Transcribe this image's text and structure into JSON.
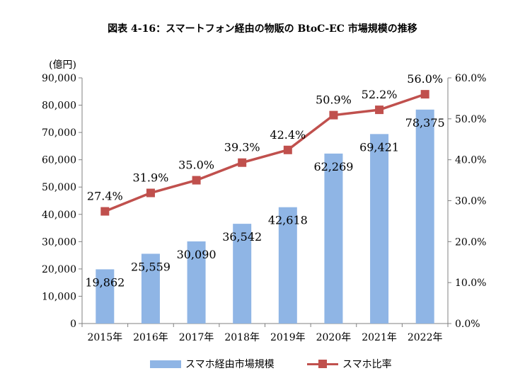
{
  "title": "図表 4-16：スマートフォン経由の物販の BtoC-EC 市場規模の推移",
  "chart_data": {
    "type": "bar+line",
    "categories": [
      "2015年",
      "2016年",
      "2017年",
      "2018年",
      "2019年",
      "2020年",
      "2021年",
      "2022年"
    ],
    "series": [
      {
        "name": "スマホ経由市場規模",
        "type": "bar",
        "axis": "left",
        "values": [
          19862,
          25559,
          30090,
          36542,
          42618,
          62269,
          69421,
          78375
        ],
        "labels": [
          "19,862",
          "25,559",
          "30,090",
          "36,542",
          "42,618",
          "62,269",
          "69,421",
          "78,375"
        ],
        "color": "#8FB5E5"
      },
      {
        "name": "スマホ比率",
        "type": "line",
        "axis": "right",
        "values": [
          27.4,
          31.9,
          35.0,
          39.3,
          42.4,
          50.9,
          52.2,
          56.0
        ],
        "labels": [
          "27.4%",
          "31.9%",
          "35.0%",
          "39.3%",
          "42.4%",
          "50.9%",
          "52.2%",
          "56.0%"
        ],
        "color": "#C0504D"
      }
    ],
    "left_axis": {
      "unit_label": "(億円)",
      "ylim": [
        0,
        90000
      ],
      "ticks": [
        "0",
        "10,000",
        "20,000",
        "30,000",
        "40,000",
        "50,000",
        "60,000",
        "70,000",
        "80,000",
        "90,000"
      ]
    },
    "right_axis": {
      "ylim": [
        0,
        60
      ],
      "ticks": [
        "0.0%",
        "10.0%",
        "20.0%",
        "30.0%",
        "40.0%",
        "50.0%",
        "60.0%"
      ]
    },
    "grid": false,
    "legend_position": "bottom"
  }
}
